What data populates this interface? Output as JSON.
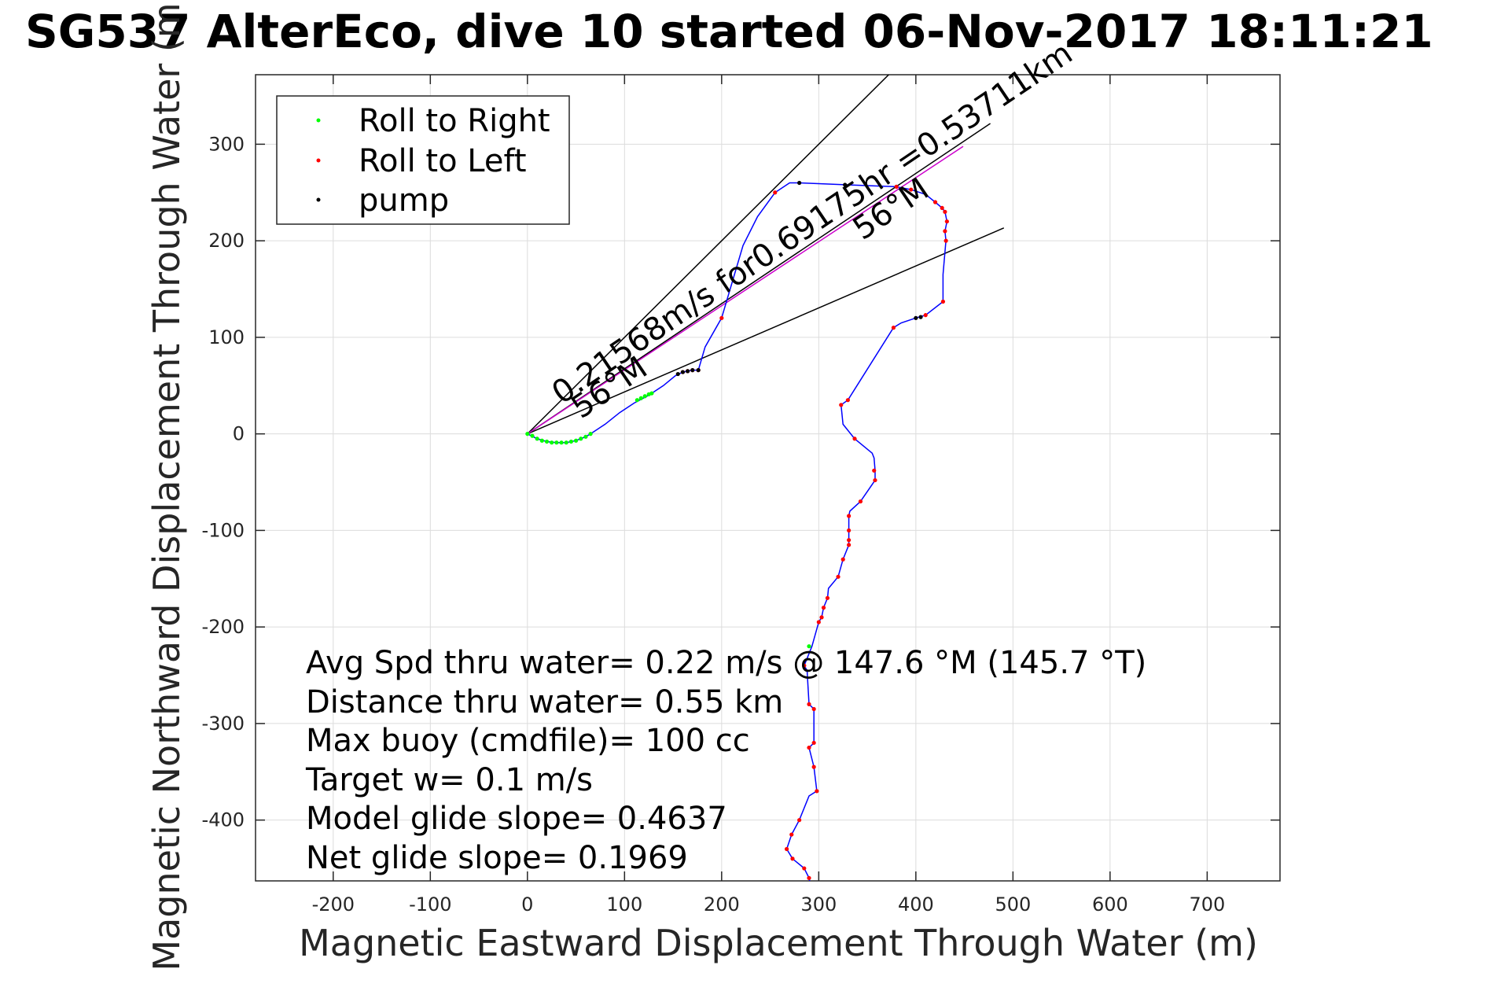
{
  "chart_data": {
    "type": "scatter",
    "title": "SG537 AlterEco, dive 10 started 06-Nov-2017 18:11:21",
    "xlabel": "Magnetic Eastward Displacement Through Water (m)",
    "ylabel": "Magnetic Northward Displacement Through Water (m)",
    "xlim": [
      -280,
      775
    ],
    "ylim": [
      -463,
      372
    ],
    "x_ticks": [
      -200,
      -100,
      0,
      100,
      200,
      300,
      400,
      500,
      600,
      700
    ],
    "y_ticks": [
      -400,
      -300,
      -200,
      -100,
      0,
      100,
      200,
      300
    ],
    "grid": true,
    "legend_position": "top-left",
    "legend": [
      {
        "label": "Roll to Right",
        "color": "#00ff00"
      },
      {
        "label": "Roll to Left",
        "color": "#ff0000"
      },
      {
        "label": "pump",
        "color": "#000000"
      }
    ],
    "track_color": "#0000ff",
    "heading_line_color": "#cc00cc",
    "track": [
      [
        0,
        0
      ],
      [
        10,
        -5
      ],
      [
        20,
        -8
      ],
      [
        30,
        -9
      ],
      [
        40,
        -9
      ],
      [
        50,
        -7
      ],
      [
        60,
        -3
      ],
      [
        65,
        0
      ],
      [
        80,
        10
      ],
      [
        95,
        22
      ],
      [
        110,
        32
      ],
      [
        125,
        40
      ],
      [
        140,
        50
      ],
      [
        152,
        60
      ],
      [
        160,
        64
      ],
      [
        170,
        66
      ],
      [
        176,
        66
      ],
      [
        183,
        90
      ],
      [
        200,
        120
      ],
      [
        222,
        195
      ],
      [
        237,
        225
      ],
      [
        255,
        250
      ],
      [
        270,
        260
      ],
      [
        280,
        260
      ],
      [
        327,
        258
      ],
      [
        355,
        257
      ],
      [
        380,
        256
      ],
      [
        395,
        253
      ],
      [
        410,
        248
      ],
      [
        420,
        240
      ],
      [
        427,
        234
      ],
      [
        430,
        230
      ],
      [
        432,
        220
      ],
      [
        430,
        210
      ],
      [
        431,
        200
      ],
      [
        428,
        165
      ],
      [
        428,
        137
      ],
      [
        410,
        123
      ],
      [
        400,
        120
      ],
      [
        385,
        115
      ],
      [
        377,
        110
      ],
      [
        330,
        35
      ],
      [
        323,
        30
      ],
      [
        325,
        10
      ],
      [
        337,
        -5
      ],
      [
        355,
        -20
      ],
      [
        357,
        -25
      ],
      [
        358,
        -38
      ],
      [
        358,
        -48
      ],
      [
        343,
        -70
      ],
      [
        332,
        -80
      ],
      [
        331,
        -85
      ],
      [
        331,
        -100
      ],
      [
        331,
        -115
      ],
      [
        325,
        -130
      ],
      [
        320,
        -148
      ],
      [
        310,
        -160
      ],
      [
        309,
        -170
      ],
      [
        305,
        -180
      ],
      [
        303,
        -190
      ],
      [
        300,
        -195
      ],
      [
        293,
        -220
      ],
      [
        285,
        -240
      ],
      [
        288,
        -245
      ],
      [
        290,
        -280
      ],
      [
        295,
        -285
      ],
      [
        295,
        -320
      ],
      [
        290,
        -325
      ],
      [
        295,
        -345
      ],
      [
        298,
        -370
      ],
      [
        290,
        -375
      ],
      [
        280,
        -400
      ],
      [
        272,
        -415
      ],
      [
        267,
        -430
      ],
      [
        273,
        -440
      ],
      [
        285,
        -450
      ],
      [
        290,
        -460
      ],
      [
        292,
        -470
      ]
    ],
    "roll_right_points": [
      [
        0,
        0
      ],
      [
        5,
        -2
      ],
      [
        10,
        -5
      ],
      [
        15,
        -7
      ],
      [
        20,
        -8
      ],
      [
        25,
        -9
      ],
      [
        30,
        -9
      ],
      [
        35,
        -9
      ],
      [
        40,
        -9
      ],
      [
        45,
        -8
      ],
      [
        50,
        -7
      ],
      [
        55,
        -5
      ],
      [
        60,
        -3
      ],
      [
        65,
        0
      ],
      [
        113,
        35
      ],
      [
        117,
        37
      ],
      [
        121,
        39
      ],
      [
        125,
        41
      ],
      [
        128,
        42
      ],
      [
        290,
        -220
      ]
    ],
    "roll_left_points": [
      [
        160,
        64
      ],
      [
        165,
        65
      ],
      [
        170,
        66
      ],
      [
        176,
        66
      ],
      [
        200,
        120
      ],
      [
        255,
        250
      ],
      [
        380,
        256
      ],
      [
        395,
        253
      ],
      [
        420,
        240
      ],
      [
        427,
        234
      ],
      [
        430,
        230
      ],
      [
        432,
        220
      ],
      [
        430,
        210
      ],
      [
        431,
        200
      ],
      [
        428,
        137
      ],
      [
        410,
        123
      ],
      [
        377,
        110
      ],
      [
        330,
        35
      ],
      [
        323,
        30
      ],
      [
        337,
        -5
      ],
      [
        357,
        -38
      ],
      [
        358,
        -48
      ],
      [
        343,
        -70
      ],
      [
        331,
        -85
      ],
      [
        331,
        -100
      ],
      [
        331,
        -110
      ],
      [
        331,
        -115
      ],
      [
        325,
        -130
      ],
      [
        320,
        -148
      ],
      [
        309,
        -170
      ],
      [
        305,
        -180
      ],
      [
        303,
        -190
      ],
      [
        300,
        -195
      ],
      [
        285,
        -240
      ],
      [
        290,
        -280
      ],
      [
        295,
        -285
      ],
      [
        295,
        -320
      ],
      [
        290,
        -325
      ],
      [
        295,
        -345
      ],
      [
        298,
        -370
      ],
      [
        280,
        -400
      ],
      [
        272,
        -415
      ],
      [
        267,
        -430
      ],
      [
        273,
        -440
      ],
      [
        285,
        -450
      ],
      [
        290,
        -460
      ],
      [
        292,
        -470
      ]
    ],
    "pump_points": [
      [
        155,
        62
      ],
      [
        160,
        64
      ],
      [
        165,
        65
      ],
      [
        170,
        66
      ],
      [
        176,
        66
      ],
      [
        280,
        260
      ],
      [
        327,
        258
      ],
      [
        400,
        120
      ],
      [
        405,
        121
      ]
    ],
    "bearing_lines": [
      {
        "bearing_deg": 56,
        "length": 575,
        "color": "#000000"
      },
      {
        "bearing_deg": 45,
        "length": 560,
        "color": "#000000"
      },
      {
        "bearing_deg": 66.5,
        "length": 535,
        "color": "#000000"
      }
    ],
    "annotations": [
      {
        "text": "0.21568m/s for0.69175hr =0.53711km",
        "x": 35,
        "y": 30,
        "angle_deg": 34
      },
      {
        "text": "56°M",
        "x": 55,
        "y": 15,
        "angle_deg": 34
      },
      {
        "text": "56°M",
        "x": 345,
        "y": 200,
        "angle_deg": 34
      }
    ],
    "stats": [
      "Avg Spd thru water=  0.22 m/s @ 147.6 °M (145.7 °T)",
      "Distance thru water=  0.55 km",
      "Max buoy (cmdfile)= 100 cc",
      "Target w= 0.1 m/s",
      "Model glide slope= 0.4637",
      "Net glide slope= 0.1969"
    ]
  }
}
